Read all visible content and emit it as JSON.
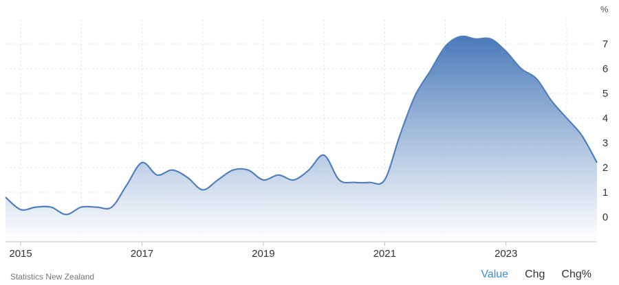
{
  "chart_data": {
    "type": "area",
    "unit_label": "%",
    "x_ticks": [
      "2015",
      "2017",
      "2019",
      "2021",
      "2023"
    ],
    "y_ticks": [
      0,
      1,
      2,
      3,
      4,
      5,
      6,
      7
    ],
    "ylim": [
      -1,
      8
    ],
    "xlim": [
      2014.75,
      2024.5
    ],
    "grid": true,
    "series": [
      {
        "x": [
          2014.75,
          2015.0,
          2015.25,
          2015.5,
          2015.75,
          2016.0,
          2016.25,
          2016.5,
          2016.75,
          2017.0,
          2017.25,
          2017.5,
          2017.75,
          2018.0,
          2018.25,
          2018.5,
          2018.75,
          2019.0,
          2019.25,
          2019.5,
          2019.75,
          2020.0,
          2020.25,
          2020.5,
          2020.75,
          2021.0,
          2021.25,
          2021.5,
          2021.75,
          2022.0,
          2022.25,
          2022.5,
          2022.75,
          2023.0,
          2023.25,
          2023.5,
          2023.75,
          2024.0,
          2024.25,
          2024.5
        ],
        "y": [
          0.8,
          0.3,
          0.4,
          0.4,
          0.1,
          0.4,
          0.4,
          0.4,
          1.3,
          2.2,
          1.7,
          1.9,
          1.6,
          1.1,
          1.5,
          1.9,
          1.9,
          1.5,
          1.7,
          1.5,
          1.9,
          2.5,
          1.5,
          1.4,
          1.4,
          1.5,
          3.3,
          4.9,
          5.9,
          6.9,
          7.3,
          7.2,
          7.2,
          6.7,
          6.0,
          5.6,
          4.7,
          4.0,
          3.3,
          2.2
        ]
      }
    ],
    "colors": {
      "line": "#4f7fbc",
      "fill_top": "#4a7ab9",
      "fill_bottom": "#ffffff",
      "grid": "#e4e4e4",
      "axis": "#bfbfbf"
    }
  },
  "footer": {
    "source": "Statistics New Zealand",
    "tabs": {
      "value": "Value",
      "chg": "Chg",
      "chg_pct": "Chg%"
    },
    "active_color": "#3b8fd1"
  }
}
